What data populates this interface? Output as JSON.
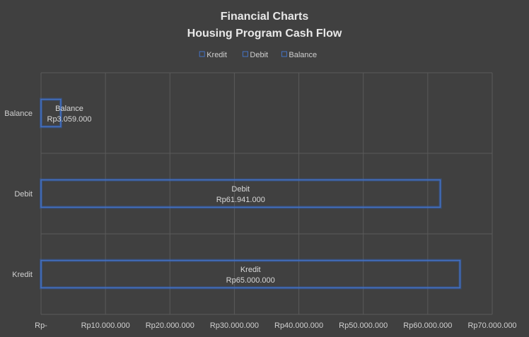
{
  "chart_data": {
    "type": "bar",
    "orientation": "horizontal",
    "title": "Financial Charts",
    "subtitle": "Housing Program Cash Flow",
    "categories": [
      "Kredit",
      "Debit",
      "Balance"
    ],
    "series": [
      {
        "name": "Kredit",
        "values": [
          65000000,
          null,
          null
        ]
      },
      {
        "name": "Debit",
        "values": [
          null,
          61941000,
          null
        ]
      },
      {
        "name": "Balance",
        "values": [
          null,
          null,
          3059000
        ]
      }
    ],
    "data_labels": [
      {
        "category": "Kredit",
        "name": "Kredit",
        "value": "Rp65.000.000"
      },
      {
        "category": "Debit",
        "name": "Debit",
        "value": "Rp61.941.000"
      },
      {
        "category": "Balance",
        "name": "Balance",
        "value": "Rp3.059.000"
      }
    ],
    "xlim": [
      0,
      70000000
    ],
    "xticks": [
      0,
      10000000,
      20000000,
      30000000,
      40000000,
      50000000,
      60000000,
      70000000
    ],
    "xtick_labels": [
      "Rp-",
      "Rp10.000.000",
      "Rp20.000.000",
      "Rp30.000.000",
      "Rp40.000.000",
      "Rp50.000.000",
      "Rp60.000.000",
      "Rp70.000.000"
    ],
    "legend": {
      "position": "top",
      "entries": [
        "Kredit",
        "Debit",
        "Balance"
      ]
    },
    "grid": true,
    "colors": {
      "background": "#404040",
      "gridline": "#5a5a5a",
      "bar_outline": "#4472c4",
      "bar_glow": "#2f5fb8",
      "text": "#d9d9d9"
    }
  }
}
